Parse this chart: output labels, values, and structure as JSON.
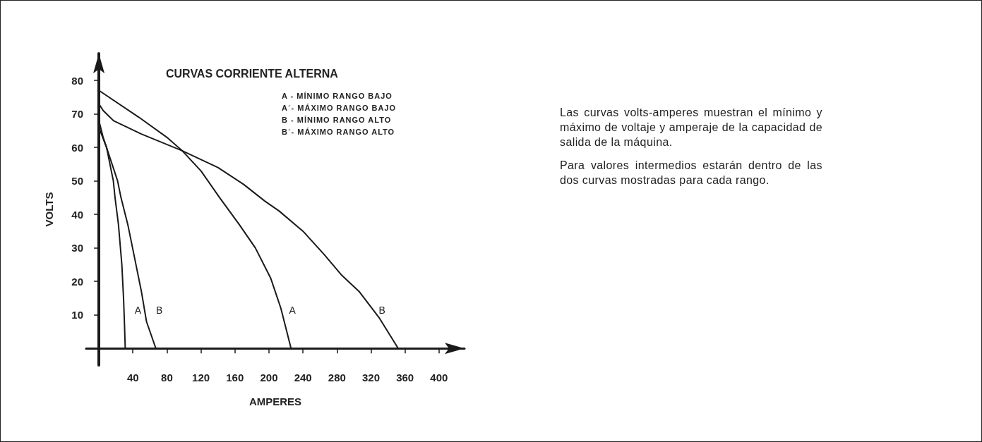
{
  "chart_data": {
    "type": "line",
    "title": "CURVAS CORRIENTE ALTERNA",
    "xlabel": "AMPERES",
    "ylabel": "VOLTS",
    "xlim": [
      -15,
      430
    ],
    "ylim": [
      -5,
      88
    ],
    "xticks": [
      40,
      80,
      120,
      160,
      200,
      240,
      280,
      320,
      360,
      400
    ],
    "yticks": [
      10,
      20,
      30,
      40,
      50,
      60,
      70,
      80
    ],
    "series": [
      {
        "color": "#1a1a1a",
        "x": [
          0,
          5,
          9,
          17,
          19,
          23,
          27,
          29,
          30,
          31
        ],
        "values": [
          68,
          63,
          60,
          50,
          45,
          37,
          25,
          15,
          8,
          0
        ]
      },
      {
        "color": "#1a1a1a",
        "x": [
          0,
          9,
          22,
          26,
          34,
          42,
          50,
          56,
          67
        ],
        "values": [
          66,
          60,
          50,
          45,
          37,
          27,
          17,
          8,
          0
        ]
      },
      {
        "color": "#1a1a1a",
        "x": [
          0,
          47,
          80,
          98,
          120,
          142,
          165,
          184,
          202,
          214,
          226
        ],
        "values": [
          77,
          69,
          63,
          59,
          53,
          45,
          37,
          30,
          21,
          12,
          0
        ]
      },
      {
        "color": "#1a1a1a",
        "x": [
          0,
          5,
          17,
          50,
          98,
          140,
          170,
          195,
          212,
          240,
          265,
          285,
          306,
          330,
          352
        ],
        "values": [
          73,
          71,
          68,
          64,
          59,
          54,
          49,
          44,
          41,
          35,
          28,
          22,
          17,
          9,
          0
        ]
      }
    ],
    "grid": false,
    "marker": "none",
    "line_style": "solid",
    "annotations": [
      "A",
      "B",
      "A",
      "B",
      "A - MÍNIMO RANGO BAJO",
      "A´- MÁXIMO RANGO BAJO",
      "B - MÍNIMO RANGO ALTO",
      "B´- MÁXIMO RANGO ALTO",
      "Las curvas volts-amperes muestran el mínimo y máximo de voltaje y amperaje de la capacidad  de salida de la máquina.",
      "Para valores intermedios estarán dentro de las dos curvas mostradas para cada rango."
    ]
  }
}
